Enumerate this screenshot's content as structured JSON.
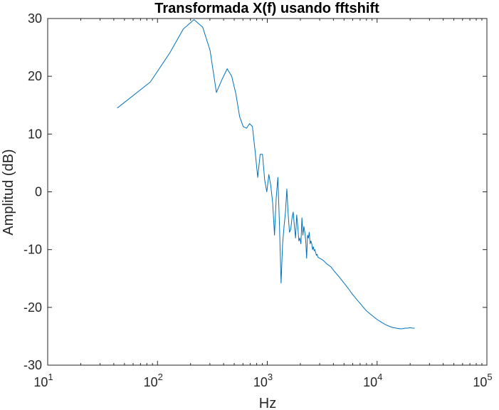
{
  "chart_data": {
    "type": "line",
    "title": "Transformada X(f) usando fftshift",
    "xlabel": "Hz",
    "ylabel": "Amplitud (dB)",
    "xscale": "log",
    "xlim": [
      10,
      100000
    ],
    "ylim": [
      -30,
      30
    ],
    "grid": false,
    "x_ticks": [
      {
        "base": "10",
        "exp": "1"
      },
      {
        "base": "10",
        "exp": "2"
      },
      {
        "base": "10",
        "exp": "3"
      },
      {
        "base": "10",
        "exp": "4"
      },
      {
        "base": "10",
        "exp": "5"
      }
    ],
    "y_ticks": [
      "30",
      "20",
      "10",
      "0",
      "-10",
      "-20",
      "-30"
    ],
    "series": [
      {
        "color": "#0072BD",
        "x": [
          43,
          86,
          129,
          172,
          215,
          258,
          301,
          344,
          388,
          431,
          474,
          517,
          560,
          603,
          646,
          689,
          732,
          775,
          818,
          861,
          904,
          947,
          990,
          1033,
          1077,
          1120,
          1163,
          1206,
          1249,
          1292,
          1335,
          1378,
          1421,
          1464,
          1507,
          1550,
          1593,
          1636,
          1679,
          1722,
          1766,
          1809,
          1852,
          1895,
          1938,
          1981,
          2024,
          2067,
          2110,
          2153,
          2196,
          2239,
          2282,
          2325,
          2368,
          2411,
          2455,
          2498,
          2541,
          2584,
          2627,
          2670,
          2713,
          2756,
          2799,
          2842,
          2885,
          3000,
          3200,
          3500,
          3800,
          4100,
          4500,
          5000,
          5500,
          6000,
          6500,
          7000,
          7500,
          8000,
          9000,
          10000,
          11000,
          12000,
          13000,
          14000,
          15000,
          16000,
          17000,
          18000,
          19000,
          20000,
          21000,
          22000
        ],
        "y": [
          14.5,
          19,
          24,
          28.2,
          29.8,
          28.5,
          24.5,
          17.2,
          19.5,
          21.3,
          20,
          17,
          13,
          11.3,
          11,
          11.8,
          11.3,
          7,
          2.5,
          6.5,
          6.5,
          2,
          0,
          3,
          1,
          -2,
          -7.5,
          -1,
          2.5,
          -6,
          -15.8,
          -9,
          -6,
          -3.5,
          0.5,
          -4,
          -7,
          -6.5,
          -4.5,
          -3.5,
          -6,
          -8,
          -4,
          -6,
          -8.5,
          -8,
          -9,
          -4.5,
          -7.5,
          -6,
          -7,
          -8.5,
          -11.5,
          -7.5,
          -8,
          -7,
          -9,
          -8.5,
          -9,
          -10,
          -9.5,
          -10.2,
          -10,
          -10.5,
          -11,
          -10.8,
          -11.3,
          -11.5,
          -11.8,
          -12.5,
          -13,
          -13.8,
          -14.7,
          -15.8,
          -16.8,
          -17.8,
          -18.6,
          -19.3,
          -20,
          -20.6,
          -21.4,
          -22.1,
          -22.6,
          -23,
          -23.3,
          -23.5,
          -23.6,
          -23.7,
          -23.7,
          -23.6,
          -23.6,
          -23.5,
          -23.6,
          -23.6
        ]
      }
    ]
  }
}
